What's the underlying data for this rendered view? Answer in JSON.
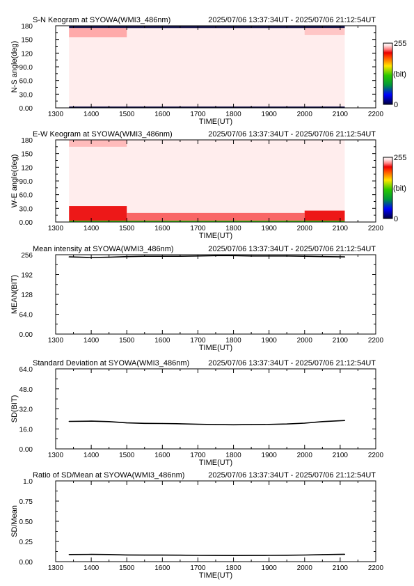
{
  "time_range": "2025/07/06 13:37:34UT - 2025/07/06 21:12:54UT",
  "x_axis": {
    "label": "TIME(UT)",
    "range": [
      1300,
      2200
    ],
    "ticks": [
      1300,
      1400,
      1500,
      1600,
      1700,
      1800,
      1900,
      2000,
      2100,
      2200
    ],
    "data_span": [
      1337.6,
      2112.9
    ]
  },
  "colorbar": {
    "max_label": "255",
    "unit_label": "(bit)",
    "min_label": "0"
  },
  "chart_data": [
    {
      "type": "heatmap",
      "title": "S-N Keogram at SYOWA(WMI3_486nm)",
      "ylabel": "N-S angle(deg)",
      "xlabel": "TIME(UT)",
      "xlim": [
        1300,
        2200
      ],
      "ylim": [
        0,
        180
      ],
      "ytick_labels": [
        "0.00",
        "30.0",
        "60.0",
        "90.0",
        "120",
        "150",
        "180"
      ],
      "yticks": [
        0,
        30,
        60,
        90,
        120,
        150,
        180
      ],
      "colorscale": {
        "min": 0,
        "max": 255,
        "unit": "bit"
      },
      "bands": [
        {
          "x": [
            1337.6,
            2112.9
          ],
          "y": [
            175,
            180
          ],
          "value": 0
        },
        {
          "x": [
            1337.6,
            2112.9
          ],
          "y": [
            0,
            3
          ],
          "value": 0
        },
        {
          "x": [
            1337.6,
            1500
          ],
          "y": [
            155,
            175
          ],
          "value": 235
        },
        {
          "x": [
            2000,
            2112.9
          ],
          "y": [
            160,
            175
          ],
          "value": 240
        }
      ],
      "background_value": 250
    },
    {
      "type": "heatmap",
      "title": "E-W Keogram at SYOWA(WMI3_486nm)",
      "ylabel": "W-E angle(deg)",
      "xlabel": "TIME(UT)",
      "xlim": [
        1300,
        2200
      ],
      "ylim": [
        0,
        180
      ],
      "ytick_labels": [
        "0.00",
        "30.0",
        "60.0",
        "90.0",
        "120",
        "150",
        "180"
      ],
      "yticks": [
        0,
        30,
        60,
        90,
        120,
        150,
        180
      ],
      "colorscale": {
        "min": 0,
        "max": 255,
        "unit": "bit"
      },
      "bands": [
        {
          "x": [
            1337.6,
            2112.9
          ],
          "y": [
            0,
            3
          ],
          "value": 120
        },
        {
          "x": [
            1337.6,
            1500
          ],
          "y": [
            3,
            35
          ],
          "value": 215
        },
        {
          "x": [
            1500,
            2000
          ],
          "y": [
            3,
            20
          ],
          "value": 225
        },
        {
          "x": [
            2000,
            2112.9
          ],
          "y": [
            3,
            25
          ],
          "value": 215
        },
        {
          "x": [
            1337.6,
            1500
          ],
          "y": [
            165,
            180
          ],
          "value": 238
        }
      ],
      "background_value": 250
    },
    {
      "type": "line",
      "title": "Mean intensity at SYOWA(WMI3_486nm)",
      "ylabel": "MEAN(BIT)",
      "xlabel": "TIME(UT)",
      "xlim": [
        1300,
        2200
      ],
      "ylim": [
        0,
        256
      ],
      "ytick_labels": [
        "0.00",
        "64.0",
        "128",
        "192",
        "256"
      ],
      "yticks": [
        0,
        64,
        128,
        192,
        256
      ],
      "x": [
        1337.6,
        1400,
        1450,
        1500,
        1550,
        1600,
        1650,
        1700,
        1750,
        1800,
        1850,
        1900,
        1950,
        2000,
        2050,
        2112.9
      ],
      "y": [
        249,
        247,
        248,
        250,
        251,
        251,
        251,
        252,
        253,
        253,
        252,
        252,
        252,
        251,
        250,
        249
      ]
    },
    {
      "type": "line",
      "title": "Standard Deviation at SYOWA(WMI3_486nm)",
      "ylabel": "SD(BIT)",
      "xlabel": "TIME(UT)",
      "xlim": [
        1300,
        2200
      ],
      "ylim": [
        0,
        64
      ],
      "ytick_labels": [
        "0.00",
        "16.0",
        "32.0",
        "48.0",
        "64.0"
      ],
      "yticks": [
        0,
        16,
        32,
        48,
        64
      ],
      "x": [
        1337.6,
        1400,
        1450,
        1500,
        1550,
        1600,
        1650,
        1700,
        1750,
        1800,
        1850,
        1900,
        1950,
        2000,
        2050,
        2112.9
      ],
      "y": [
        22.0,
        22.2,
        21.8,
        20.8,
        20.4,
        20.3,
        20.1,
        19.7,
        19.4,
        19.3,
        19.4,
        19.6,
        19.9,
        20.6,
        21.8,
        22.7
      ]
    },
    {
      "type": "line",
      "title": "Ratio of SD/Mean at SYOWA(WMI3_486nm)",
      "ylabel": "SD/Mean",
      "xlabel": "TIME(UT)",
      "xlim": [
        1300,
        2200
      ],
      "ylim": [
        0,
        1
      ],
      "ytick_labels": [
        "0.00",
        "0.25",
        "0.50",
        "0.75",
        "1.0"
      ],
      "yticks": [
        0,
        0.25,
        0.5,
        0.75,
        1.0
      ],
      "x": [
        1337.6,
        1400,
        1450,
        1500,
        1550,
        1600,
        1650,
        1700,
        1750,
        1800,
        1850,
        1900,
        1950,
        2000,
        2050,
        2112.9
      ],
      "y": [
        0.088,
        0.09,
        0.088,
        0.083,
        0.081,
        0.081,
        0.08,
        0.078,
        0.077,
        0.076,
        0.077,
        0.078,
        0.079,
        0.082,
        0.087,
        0.091
      ]
    }
  ]
}
